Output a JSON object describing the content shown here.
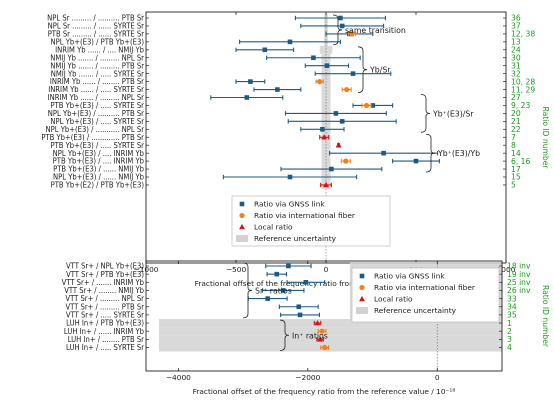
{
  "colors": {
    "gnss": "#1f5a86",
    "fiber": "#f0821e",
    "local": "#d21414",
    "uncertainty": "#d2d2d2",
    "ratio_id": "#1a9a1a"
  },
  "chart_data": [
    {
      "type": "scatter",
      "xlabel": "Fractional offset of the frequency ratio from the reference value / 10⁻¹⁸",
      "ylabel_right": "Ratio ID number",
      "xlim": [
        -1000,
        1000
      ],
      "x_ticks": [
        "−1000",
        "−500",
        "0",
        "500",
        "1000"
      ],
      "x_tick_values": [
        -1000,
        -500,
        0,
        500,
        1000
      ],
      "legend": {
        "position": "lower-left-center",
        "entries": [
          {
            "label": "Ratio via GNSS link",
            "marker": "square",
            "color_key": "gnss"
          },
          {
            "label": "Ratio via international fiber",
            "marker": "circle",
            "color_key": "fiber"
          },
          {
            "label": "Local ratio",
            "marker": "triangle",
            "color_key": "local"
          },
          {
            "label": "Reference uncertainty",
            "marker": "band",
            "color_key": "uncertainty"
          }
        ]
      },
      "groups": [
        {
          "label": "same transition",
          "rows": [
            0,
            3
          ]
        },
        {
          "label": "Yb/Sr",
          "rows": [
            4,
            9
          ]
        },
        {
          "label": "Yb⁺(E3)/Sr",
          "rows": [
            10,
            14
          ]
        },
        {
          "label": "Yb⁺(E3)/Yb",
          "rows": [
            15,
            19
          ]
        }
      ],
      "rows": [
        {
          "label": "NPL Sr ......... / .......... PTB Sr",
          "ids": "36",
          "unc": 10,
          "points": [
            {
              "type": "gnss",
              "x": 80,
              "err": 250
            }
          ]
        },
        {
          "label": "NPL Sr ......... / ...... SYRTE Sr",
          "ids": "37",
          "unc": 10,
          "points": [
            {
              "type": "gnss",
              "x": 90,
              "err": 230
            }
          ]
        },
        {
          "label": "PTB Sr ......... / ...... SYRTE Sr",
          "ids": "12, 38",
          "unc": 10,
          "points": [
            {
              "type": "gnss",
              "x": 130,
              "err": 130
            },
            {
              "type": "fiber",
              "x": 145,
              "err": 20
            }
          ]
        },
        {
          "label": "NPL Yb+(E3) / PTB Yb+(E3)",
          "ids": "13",
          "unc": 10,
          "points": [
            {
              "type": "gnss",
              "x": -200,
              "err": 280
            }
          ]
        },
        {
          "label": "INRIM Yb ...... / .... NMIJ Yb",
          "ids": "24",
          "unc": 35,
          "points": [
            {
              "type": "gnss",
              "x": -340,
              "err": 160
            }
          ]
        },
        {
          "label": "NMIJ Yb ....... / ......... NPL Sr",
          "ids": "30",
          "unc": 25,
          "points": [
            {
              "type": "gnss",
              "x": -70,
              "err": 260
            }
          ]
        },
        {
          "label": "NMIJ Yb ....... / ......... PTB Sr",
          "ids": "31",
          "unc": 25,
          "points": [
            {
              "type": "gnss",
              "x": 5,
              "err": 120
            }
          ]
        },
        {
          "label": "NMIJ Yb ....... / ..... SYRTE Sr",
          "ids": "32",
          "unc": 25,
          "points": [
            {
              "type": "gnss",
              "x": 150,
              "err": 210
            }
          ]
        },
        {
          "label": "INRIM Yb ...... / ........ PTB Sr",
          "ids": "10, 28",
          "unc": 25,
          "points": [
            {
              "type": "gnss",
              "x": -420,
              "err": 80
            },
            {
              "type": "fiber",
              "x": -35,
              "err": 20
            }
          ]
        },
        {
          "label": "INRIM Yb ...... / ..... SYRTE Sr",
          "ids": "11, 29",
          "unc": 25,
          "points": [
            {
              "type": "gnss",
              "x": -270,
              "err": 130
            },
            {
              "type": "fiber",
              "x": 115,
              "err": 25
            }
          ]
        },
        {
          "label": "INRIM Yb ...... / ......... NPL Sr",
          "ids": "27",
          "unc": 25,
          "points": [
            {
              "type": "gnss",
              "x": -440,
              "err": 200
            }
          ]
        },
        {
          "label": "PTB Yb+(E3) / ..... SYRTE Sr",
          "ids": "9, 23",
          "unc": 25,
          "points": [
            {
              "type": "gnss",
              "x": 260,
              "err": 110
            },
            {
              "type": "fiber",
              "x": 225,
              "err": 25
            }
          ]
        },
        {
          "label": "NPL Yb+(E3) / .......... PTB Sr",
          "ids": "20",
          "unc": 25,
          "points": [
            {
              "type": "gnss",
              "x": 55,
              "err": 280
            }
          ]
        },
        {
          "label": "NPL Yb+(E3) / ..... SYRTE Sr",
          "ids": "21",
          "unc": 25,
          "points": [
            {
              "type": "gnss",
              "x": 90,
              "err": 300
            }
          ]
        },
        {
          "label": "NPL Yb+(E3) / ........... NPL Sr",
          "ids": "22",
          "unc": 25,
          "points": [
            {
              "type": "gnss",
              "x": -20,
              "err": 120
            }
          ]
        },
        {
          "label": "PTB Yb+(E3) / ............. PTB Sr",
          "ids": "7",
          "unc": 25,
          "points": [
            {
              "type": "local",
              "x": -10,
              "err": 25
            }
          ]
        },
        {
          "label": "PTB Yb+(E3) / ..... SYRTE Sr",
          "ids": "8",
          "unc": 25,
          "points": [
            {
              "type": "local",
              "x": 70,
              "err": 5
            }
          ]
        },
        {
          "label": "NPL Yb+(E3) / .... INRIM Yb",
          "ids": "14",
          "unc": 25,
          "points": [
            {
              "type": "gnss",
              "x": 320,
              "err": 300
            }
          ]
        },
        {
          "label": "PTB Yb+(E3) / .... INRIM Yb",
          "ids": "6, 16",
          "unc": 25,
          "points": [
            {
              "type": "gnss",
              "x": 500,
              "err": 130
            },
            {
              "type": "fiber",
              "x": 110,
              "err": 25
            }
          ]
        },
        {
          "label": "PTB Yb+(E3) / ...... NMIJ Yb",
          "ids": "17",
          "unc": 25,
          "points": [
            {
              "type": "gnss",
              "x": 30,
              "err": 280
            }
          ]
        },
        {
          "label": "NPL Yb+(E3) / ...... NMIJ Yb",
          "ids": "15",
          "unc": 25,
          "points": [
            {
              "type": "gnss",
              "x": -200,
              "err": 370
            }
          ]
        },
        {
          "label": "PTB Yb+(E2) / PTB Yb+(E3)",
          "ids": "5",
          "unc": 25,
          "points": [
            {
              "type": "local",
              "x": 0,
              "err": 30
            }
          ]
        }
      ]
    },
    {
      "type": "scatter",
      "xlabel": "Fractional offset of the frequency ratio from the reference value / 10⁻¹⁸",
      "ylabel_right": "Ratio ID number",
      "xlim": [
        -4500,
        1000
      ],
      "x_ticks": [
        "−4000",
        "−2000",
        "0"
      ],
      "x_tick_values": [
        -4000,
        -2000,
        0
      ],
      "legend": {
        "position": "top-right",
        "entries": [
          {
            "label": "Ratio via GNSS link",
            "marker": "square",
            "color_key": "gnss"
          },
          {
            "label": "Ratio via international fiber",
            "marker": "circle",
            "color_key": "fiber"
          },
          {
            "label": "Local ratio",
            "marker": "triangle",
            "color_key": "local"
          },
          {
            "label": "Reference uncertainty",
            "marker": "band",
            "color_key": "uncertainty"
          }
        ]
      },
      "groups": [
        {
          "label": "Sr⁺ ratios",
          "rows": [
            0,
            6
          ]
        },
        {
          "label": "In⁺ ratios",
          "rows": [
            7,
            10
          ]
        }
      ],
      "rows": [
        {
          "label": "VTT Sr+ / NPL Yb+(E3)",
          "ids": "18 inv",
          "unc": 1350,
          "points": [
            {
              "type": "gnss",
              "x": -2300,
              "err": 350
            }
          ]
        },
        {
          "label": "VTT Sr+ / PTB Yb+(E3)",
          "ids": "19 inv",
          "unc": 1350,
          "points": [
            {
              "type": "gnss",
              "x": -2480,
              "err": 150
            }
          ]
        },
        {
          "label": "VTT Sr+ / ....... INRIM Yb",
          "ids": "25 inv",
          "unc": 1350,
          "points": [
            {
              "type": "gnss",
              "x": -2030,
              "err": 290
            }
          ]
        },
        {
          "label": "VTT Sr+ / ........ NMIJ Yb",
          "ids": "26 inv",
          "unc": 1350,
          "points": [
            {
              "type": "gnss",
              "x": -2380,
              "err": 320
            }
          ]
        },
        {
          "label": "VTT Sr+ / ......... NPL Sr",
          "ids": "33",
          "unc": 1350,
          "points": [
            {
              "type": "gnss",
              "x": -2620,
              "err": 300
            }
          ]
        },
        {
          "label": "VTT Sr+ / ......... PTB Sr",
          "ids": "34",
          "unc": 1350,
          "points": [
            {
              "type": "gnss",
              "x": -2140,
              "err": 300
            }
          ]
        },
        {
          "label": "VTT Sr+ / ..... SYRTE Sr",
          "ids": "35",
          "unc": 1350,
          "points": [
            {
              "type": "gnss",
              "x": -2120,
              "err": 300
            }
          ]
        },
        {
          "label": "LUH In+ / PTB Yb+(E3)",
          "ids": "1",
          "unc": 4300,
          "points": [
            {
              "type": "local",
              "x": -1850,
              "err": 50
            }
          ]
        },
        {
          "label": "LUH In+ / ...... INRIM Yb",
          "ids": "2",
          "unc": 4300,
          "points": [
            {
              "type": "fiber",
              "x": -1780,
              "err": 60
            }
          ]
        },
        {
          "label": "LUH In+ / ........ PTB Sr",
          "ids": "3",
          "unc": 4300,
          "points": [
            {
              "type": "local",
              "x": -1810,
              "err": 50
            }
          ]
        },
        {
          "label": "LUH In+ / ..... SYRTE Sr",
          "ids": "4",
          "unc": 4300,
          "points": [
            {
              "type": "fiber",
              "x": -1740,
              "err": 60
            }
          ]
        }
      ]
    }
  ]
}
